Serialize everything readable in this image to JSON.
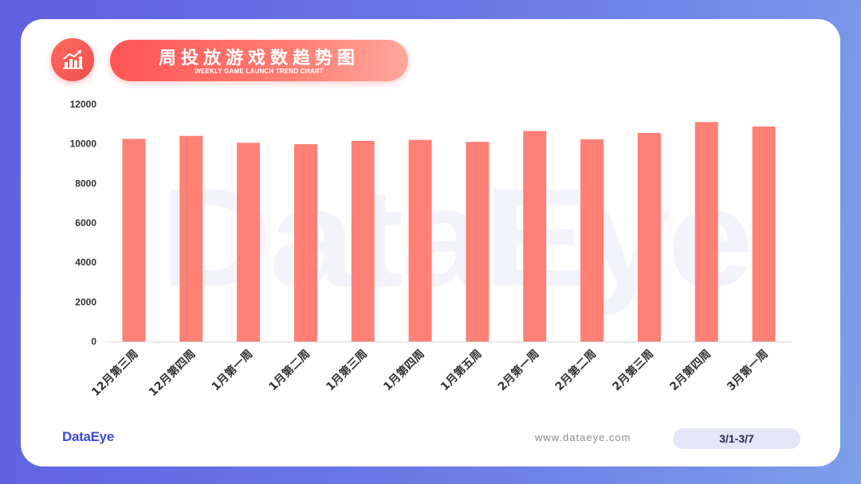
{
  "header": {
    "title": "周投放游戏数趋势图",
    "subtitle": "WEEKLY GAME LAUNCH TREND CHART",
    "icon": "bar-chart-trend-icon"
  },
  "watermark": "DataEye",
  "footer": {
    "brand": "DataEye",
    "website": "www.dataeye.com",
    "date_range": "3/1-3/7"
  },
  "colors": {
    "background_start": "#5f5fe0",
    "background_end": "#7d9eea",
    "bar": "#ff8075",
    "accent": "#f24e4e",
    "brand": "#3d49d6"
  },
  "chart_data": {
    "type": "bar",
    "categories": [
      "12月第三周",
      "12月第四周",
      "1月第一周",
      "1月第二周",
      "1月第三周",
      "1月第四周",
      "1月第五周",
      "2月第一周",
      "2月第二周",
      "2月第三周",
      "2月第四周",
      "3月第一周"
    ],
    "values": [
      10250,
      10400,
      10050,
      9980,
      10150,
      10200,
      10100,
      10650,
      10230,
      10550,
      11100,
      10880
    ],
    "title": "",
    "xlabel": "",
    "ylabel": "",
    "ylim": [
      0,
      12000
    ],
    "yticks": [
      0,
      2000,
      4000,
      6000,
      8000,
      10000,
      12000
    ],
    "grid": false,
    "legend": "none"
  }
}
